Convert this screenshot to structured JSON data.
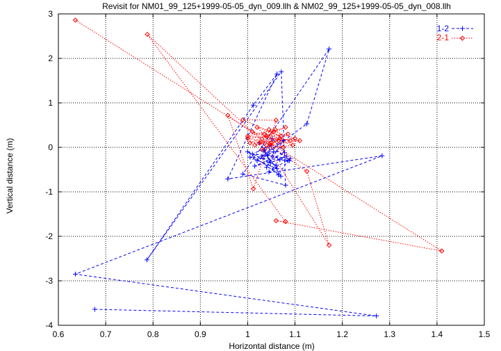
{
  "chart_data": {
    "type": "line",
    "title": "Revisit for NM01_99_125+1999-05-05_dyn_009.llh & NM02_99_125+1999-05-05_dyn_008.llh",
    "xlabel": "Horizontal distance (m)",
    "ylabel": "Vertical distance (m)",
    "xlim": [
      0.6,
      1.5
    ],
    "ylim": [
      -4,
      3
    ],
    "xticks": [
      0.6,
      0.7,
      0.8,
      0.9,
      1,
      1.1,
      1.2,
      1.3,
      1.4,
      1.5
    ],
    "yticks": [
      -4,
      -3,
      -2,
      -1,
      0,
      1,
      2,
      3
    ],
    "xtick_labels": [
      "0.6",
      "0.7",
      "0.8",
      "0.9",
      "1",
      "1.1",
      "1.2",
      "1.3",
      "1.4",
      "1.5"
    ],
    "ytick_labels": [
      "-4",
      "-3",
      "-2",
      "-1",
      "0",
      "1",
      "2",
      "3"
    ],
    "grid": true,
    "grid_style": "dotted",
    "legend_position": "top-right",
    "series": [
      {
        "name": "1-2",
        "color": "#0000ff",
        "marker": "plus",
        "line_style": "dashed",
        "x": [
          0.677,
          1.272,
          0.636,
          1.284,
          0.958,
          1.062,
          1.012,
          0.787,
          1.071,
          1.08,
          0.99,
          1.172,
          1.125,
          1.02,
          1.055,
          1.04,
          1.075,
          1.03,
          1.065,
          1.085,
          1.05,
          1.01,
          1.09,
          1.045,
          1.06,
          1.0,
          1.07,
          1.025,
          1.082,
          1.048,
          1.035,
          1.068,
          1.015,
          1.078,
          1.052,
          1.042,
          1.088,
          1.005,
          1.062,
          1.033
        ],
        "y": [
          -3.64,
          -3.79,
          -2.85,
          -0.19,
          -0.71,
          1.65,
          0.95,
          -2.53,
          1.7,
          -0.85,
          -0.6,
          2.21,
          0.53,
          -0.3,
          -0.1,
          -0.45,
          0.15,
          -0.2,
          -0.62,
          -0.3,
          0.05,
          -0.15,
          -0.25,
          -0.55,
          -0.4,
          -0.1,
          -0.65,
          0.1,
          -0.2,
          -0.35,
          -0.05,
          -0.28,
          -0.42,
          -0.12,
          0.2,
          -0.18,
          -0.3,
          -0.22,
          -0.48,
          -0.08
        ]
      },
      {
        "name": "2-1",
        "color": "#ff0000",
        "marker": "diamond",
        "line_style": "dotted",
        "x": [
          0.636,
          1.41,
          1.06,
          1.08,
          0.788,
          1.04,
          1.172,
          1.125,
          0.958,
          1.012,
          1.06,
          0.99,
          1.07,
          1.02,
          1.05,
          1.0,
          1.085,
          1.03,
          1.095,
          1.01,
          1.065,
          1.045,
          1.1,
          1.025,
          1.075,
          1.04,
          1.055,
          1.015,
          1.09,
          1.035,
          1.08,
          1.005,
          1.068,
          1.048,
          1.11,
          1.0,
          1.058,
          1.028
        ],
        "y": [
          2.86,
          -2.33,
          -1.65,
          -1.67,
          2.54,
          0.05,
          -2.2,
          -0.54,
          0.72,
          -0.93,
          0.61,
          0.62,
          0.25,
          0.45,
          0.1,
          0.2,
          0.3,
          -0.05,
          0.05,
          0.35,
          0.15,
          0.4,
          0.2,
          0.1,
          0.0,
          0.25,
          0.35,
          0.05,
          0.15,
          0.3,
          0.45,
          0.1,
          0.2,
          0.05,
          0.15,
          0.25,
          0.4,
          0.12
        ]
      }
    ]
  }
}
